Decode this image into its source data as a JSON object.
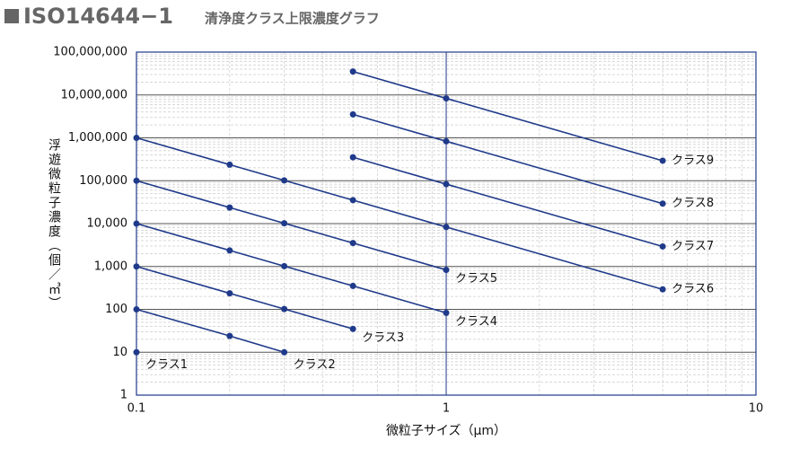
{
  "chart_data": {
    "type": "line",
    "title": "ISO14644−1",
    "subtitle": "清浄度クラス上限濃度グラフ",
    "x_label": "微粒子サイズ（μm）",
    "y_label": "浮遊微粒子濃度（個／㎥）",
    "x_scale": "log",
    "y_scale": "log",
    "grid": true,
    "xlim": [
      0.1,
      10
    ],
    "ylim": [
      1,
      100000000
    ],
    "xticks": [
      0.1,
      1,
      10
    ],
    "yticks": [
      1,
      10,
      100,
      {
        "value": 1000,
        "label": "1,000"
      },
      {
        "value": 10000,
        "label": "10,000"
      },
      {
        "value": 100000,
        "label": "100,000"
      },
      {
        "value": 1000000,
        "label": "1,000,000"
      },
      {
        "value": 10000000,
        "label": "10,000,000"
      },
      {
        "value": 100000000,
        "label": "100,000,000"
      }
    ],
    "series": [
      {
        "name": "クラス1",
        "color": "#1f3a8a",
        "x": [
          0.1
        ],
        "values": [
          10
        ]
      },
      {
        "name": "クラス2",
        "color": "#1f3a8a",
        "x": [
          0.1,
          0.2,
          0.3
        ],
        "values": [
          100,
          24,
          10
        ]
      },
      {
        "name": "クラス3",
        "color": "#1f3a8a",
        "x": [
          0.1,
          0.2,
          0.3,
          0.5
        ],
        "values": [
          1000,
          237,
          102,
          35
        ]
      },
      {
        "name": "クラス4",
        "color": "#1f3a8a",
        "x": [
          0.1,
          0.2,
          0.3,
          0.5,
          1
        ],
        "values": [
          10000,
          2370,
          1020,
          352,
          83
        ]
      },
      {
        "name": "クラス5",
        "color": "#1f3a8a",
        "x": [
          0.1,
          0.2,
          0.3,
          0.5,
          1
        ],
        "values": [
          100000,
          23700,
          10200,
          3520,
          832
        ]
      },
      {
        "name": "クラス6",
        "color": "#1f3a8a",
        "x": [
          0.1,
          0.2,
          0.3,
          0.5,
          1,
          5
        ],
        "values": [
          1000000,
          237000,
          102000,
          35200,
          8320,
          293
        ]
      },
      {
        "name": "クラス7",
        "color": "#1f3a8a",
        "x": [
          0.5,
          1,
          5
        ],
        "values": [
          352000,
          83200,
          2930
        ]
      },
      {
        "name": "クラス8",
        "color": "#1f3a8a",
        "x": [
          0.5,
          1,
          5
        ],
        "values": [
          3520000,
          832000,
          29300
        ]
      },
      {
        "name": "クラス9",
        "color": "#1f3a8a",
        "x": [
          0.5,
          1,
          5
        ],
        "values": [
          35200000,
          8320000,
          293000
        ]
      }
    ]
  }
}
